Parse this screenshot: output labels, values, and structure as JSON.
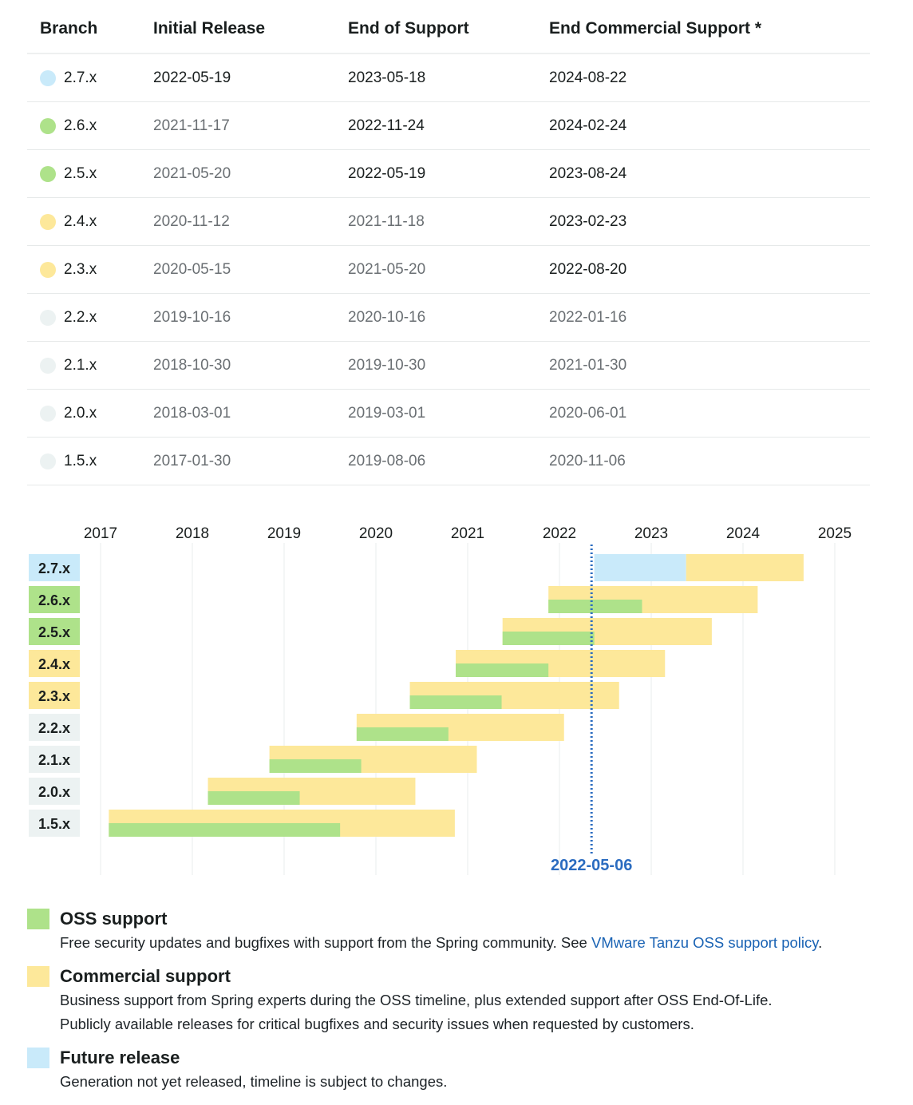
{
  "table": {
    "headers": [
      "Branch",
      "Initial Release",
      "End of Support",
      "End Commercial Support *"
    ],
    "rows": [
      {
        "branch": "2.7.x",
        "status": "future",
        "initial": "2022-05-19",
        "eos": "2023-05-18",
        "eocs": "2024-08-22",
        "styles": [
          "dark",
          "dark",
          "dark"
        ]
      },
      {
        "branch": "2.6.x",
        "status": "oss",
        "initial": "2021-11-17",
        "eos": "2022-11-24",
        "eocs": "2024-02-24",
        "styles": [
          "muted",
          "dark",
          "dark"
        ]
      },
      {
        "branch": "2.5.x",
        "status": "oss",
        "initial": "2021-05-20",
        "eos": "2022-05-19",
        "eocs": "2023-08-24",
        "styles": [
          "muted",
          "dark",
          "dark"
        ]
      },
      {
        "branch": "2.4.x",
        "status": "commercial",
        "initial": "2020-11-12",
        "eos": "2021-11-18",
        "eocs": "2023-02-23",
        "styles": [
          "muted",
          "muted",
          "dark"
        ]
      },
      {
        "branch": "2.3.x",
        "status": "commercial",
        "initial": "2020-05-15",
        "eos": "2021-05-20",
        "eocs": "2022-08-20",
        "styles": [
          "muted",
          "muted",
          "dark"
        ]
      },
      {
        "branch": "2.2.x",
        "status": "eol",
        "initial": "2019-10-16",
        "eos": "2020-10-16",
        "eocs": "2022-01-16",
        "styles": [
          "muted",
          "muted",
          "muted"
        ]
      },
      {
        "branch": "2.1.x",
        "status": "eol",
        "initial": "2018-10-30",
        "eos": "2019-10-30",
        "eocs": "2021-01-30",
        "styles": [
          "muted",
          "muted",
          "muted"
        ]
      },
      {
        "branch": "2.0.x",
        "status": "eol",
        "initial": "2018-03-01",
        "eos": "2019-03-01",
        "eocs": "2020-06-01",
        "styles": [
          "muted",
          "muted",
          "muted"
        ]
      },
      {
        "branch": "1.5.x",
        "status": "eol",
        "initial": "2017-01-30",
        "eos": "2019-08-06",
        "eocs": "2020-11-06",
        "styles": [
          "muted",
          "muted",
          "muted"
        ]
      }
    ]
  },
  "timeline": {
    "years": [
      "2017",
      "2018",
      "2019",
      "2020",
      "2021",
      "2022",
      "2023",
      "2024",
      "2025"
    ],
    "today": "2022-05-06",
    "rows": [
      {
        "branch": "2.7.x",
        "status": "future",
        "future_start": 2022.38,
        "oss_end": 2023.38,
        "commercial_end": 2024.66
      },
      {
        "branch": "2.6.x",
        "status": "oss",
        "start": 2021.88,
        "oss_end": 2022.9,
        "commercial_end": 2024.16
      },
      {
        "branch": "2.5.x",
        "status": "oss",
        "start": 2021.38,
        "oss_end": 2022.38,
        "commercial_end": 2023.66
      },
      {
        "branch": "2.4.x",
        "status": "commercial",
        "start": 2020.87,
        "oss_end": 2021.88,
        "commercial_end": 2023.15
      },
      {
        "branch": "2.3.x",
        "status": "commercial",
        "start": 2020.37,
        "oss_end": 2021.37,
        "commercial_end": 2022.65
      },
      {
        "branch": "2.2.x",
        "status": "eol",
        "start": 2019.79,
        "oss_end": 2020.79,
        "commercial_end": 2022.05
      },
      {
        "branch": "2.1.x",
        "status": "eol",
        "start": 2018.84,
        "oss_end": 2019.84,
        "commercial_end": 2021.1
      },
      {
        "branch": "2.0.x",
        "status": "eol",
        "start": 2018.17,
        "oss_end": 2019.17,
        "commercial_end": 2020.43
      },
      {
        "branch": "1.5.x",
        "status": "eol",
        "start": 2017.09,
        "oss_end": 2019.61,
        "commercial_end": 2020.86
      }
    ],
    "colors": {
      "oss": "#aee28a",
      "commercial": "#fde89a",
      "future": "#c9eafa",
      "eol": "#ecf2f2",
      "today_line": "#2b6cc0"
    }
  },
  "legend": {
    "oss": {
      "title": "OSS support",
      "desc_before": "Free security updates and bugfixes with support from the Spring community. See ",
      "link": "VMware Tanzu OSS support policy",
      "desc_after": "."
    },
    "commercial": {
      "title": "Commercial support",
      "desc_line1": "Business support from Spring experts during the OSS timeline, plus extended support after OSS End-Of-Life.",
      "desc_line2": "Publicly available releases for critical bugfixes and security issues when requested by customers."
    },
    "future": {
      "title": "Future release",
      "desc": "Generation not yet released, timeline is subject to changes."
    }
  }
}
